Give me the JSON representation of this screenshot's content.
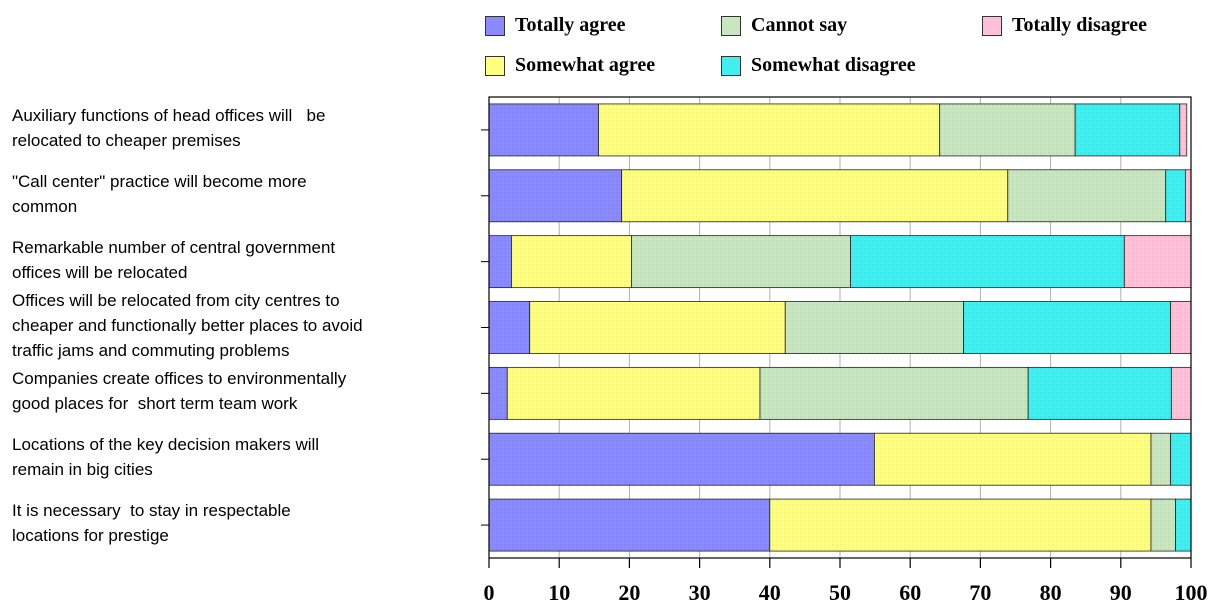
{
  "chart_data": {
    "type": "bar",
    "orientation": "horizontal",
    "stacked": true,
    "categories": [
      "Auxiliary functions of head offices will   be relocated to cheaper premises",
      "\"Call center\" practice will become more common",
      "Remarkable number of central government offices will be relocated",
      "Offices will be relocated from city centres to cheaper and functionally better places to avoid traffic jams and commuting problems",
      "Companies create offices to environmentally good places for  short term team work",
      "Locations of the key decision makers will remain in big cities",
      "It is necessary  to stay in respectable locations for prestige"
    ],
    "category_lines": [
      [
        "Auxiliary functions of head offices will   be",
        "relocated to cheaper premises"
      ],
      [
        "\"Call center\" practice will become more",
        "common"
      ],
      [
        "Remarkable number of central government",
        "offices will be relocated"
      ],
      [
        "Offices will be relocated from city centres to",
        "cheaper and functionally better places to avoid",
        "traffic jams and commuting problems"
      ],
      [
        "Companies create offices to environmentally",
        "good places for  short term team work"
      ],
      [
        "Locations of the key decision makers will",
        "remain in big cities"
      ],
      [
        "It is necessary  to stay in respectable",
        "locations for prestige"
      ]
    ],
    "series": [
      {
        "name": "Totally agree",
        "color": "#8a8aff",
        "values": [
          15.6,
          18.9,
          3.2,
          5.8,
          2.6,
          54.9,
          40.0
        ]
      },
      {
        "name": "Somewhat agree",
        "color": "#ffff80",
        "values": [
          48.6,
          55.0,
          17.1,
          36.4,
          36.0,
          39.4,
          54.3
        ]
      },
      {
        "name": "Cannot say",
        "color": "#c8e6c0",
        "values": [
          19.3,
          22.5,
          31.2,
          25.4,
          38.2,
          2.8,
          3.5
        ]
      },
      {
        "name": "Somewhat disagree",
        "color": "#40f0f0",
        "values": [
          14.9,
          2.8,
          39.0,
          29.5,
          20.4,
          2.9,
          2.2
        ]
      },
      {
        "name": "Totally disagree",
        "color": "#ffc0d8",
        "values": [
          1.0,
          0.8,
          9.5,
          2.9,
          2.8,
          0.0,
          0.0
        ]
      }
    ],
    "legend_order": [
      "Totally agree",
      "Cannot say",
      "Totally disagree",
      "Somewhat agree",
      "Somewhat disagree"
    ],
    "xlim": [
      0,
      100
    ],
    "xticks": [
      0,
      10,
      20,
      30,
      40,
      50,
      60,
      70,
      80,
      90,
      100
    ],
    "grid": true,
    "legend_position": "top",
    "title": "",
    "xlabel": "",
    "ylabel": ""
  }
}
